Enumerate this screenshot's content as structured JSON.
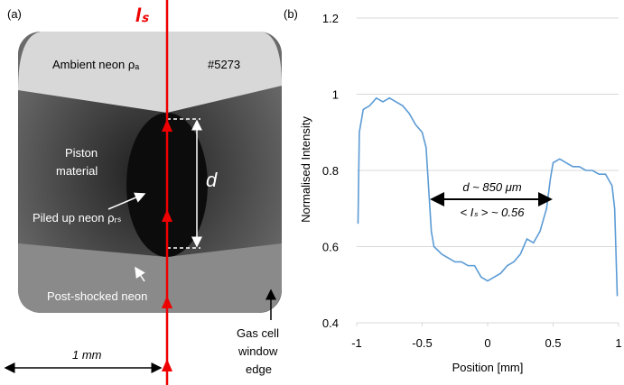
{
  "panel_a": {
    "label": "(a)",
    "beam_label": "Iₛ",
    "ambient": "Ambient neon ρₐ",
    "shot": "#5273",
    "piston": [
      "Piston",
      "material"
    ],
    "d_label": "d",
    "piled": "Piled up neon ρᵣₛ",
    "post": "Post-shocked neon",
    "window": [
      "Gas cell",
      "window",
      "edge"
    ],
    "scale": "1 mm"
  },
  "chart_data": {
    "type": "line",
    "panel_label": "(b)",
    "x_label": "Position [mm]",
    "y_label": "Normalised Intensity",
    "annotations": [
      "d ~ 850 μm",
      "< Iₛ > ~ 0.56"
    ],
    "x": [
      -0.99,
      -0.98,
      -0.95,
      -0.9,
      -0.85,
      -0.8,
      -0.75,
      -0.7,
      -0.65,
      -0.6,
      -0.55,
      -0.5,
      -0.47,
      -0.45,
      -0.43,
      -0.41,
      -0.35,
      -0.3,
      -0.25,
      -0.2,
      -0.15,
      -0.1,
      -0.05,
      0,
      0.05,
      0.1,
      0.15,
      0.2,
      0.25,
      0.3,
      0.35,
      0.4,
      0.45,
      0.48,
      0.5,
      0.55,
      0.6,
      0.65,
      0.7,
      0.75,
      0.8,
      0.85,
      0.9,
      0.95,
      0.97,
      0.99
    ],
    "series": [
      {
        "color": "#5b9bd5",
        "values": [
          0.66,
          0.9,
          0.96,
          0.97,
          0.99,
          0.98,
          0.99,
          0.98,
          0.97,
          0.95,
          0.92,
          0.9,
          0.86,
          0.75,
          0.64,
          0.6,
          0.58,
          0.57,
          0.56,
          0.56,
          0.55,
          0.55,
          0.52,
          0.51,
          0.52,
          0.53,
          0.55,
          0.56,
          0.58,
          0.62,
          0.61,
          0.64,
          0.7,
          0.78,
          0.82,
          0.83,
          0.82,
          0.81,
          0.81,
          0.8,
          0.8,
          0.79,
          0.79,
          0.76,
          0.7,
          0.47
        ]
      }
    ],
    "xlim": [
      -1,
      1
    ],
    "xticks": [
      -1,
      -0.5,
      0,
      0.5,
      1
    ],
    "ylim": [
      0.4,
      1.2
    ],
    "yticks": [
      0.4,
      0.6,
      0.8,
      1,
      1.2
    ],
    "grid": true
  }
}
